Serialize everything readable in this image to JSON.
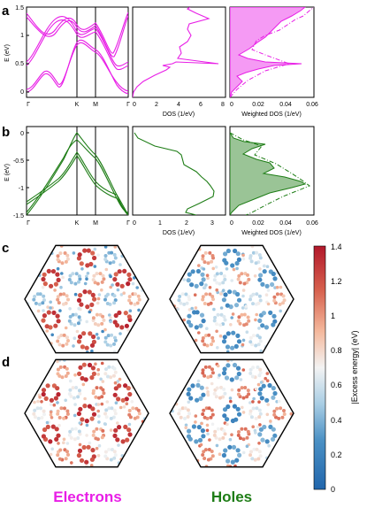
{
  "panel_letters": [
    "a",
    "b",
    "c",
    "d"
  ],
  "colors": {
    "electron": "#e81ee6",
    "hole": "#1e7d16",
    "cmap_low": "#2166ac",
    "cmap_mid": "#f3f3f3",
    "cmap_high": "#b2182b"
  },
  "panel_a": {
    "band_ylabel": "E (eV)",
    "band_yticks": [
      "0",
      "0.5",
      "1",
      "1.5"
    ],
    "kpoints": [
      "Γ",
      "K",
      "M",
      "Γ"
    ],
    "dos_xlabel": "DOS (1/eV)",
    "dos_xticks": [
      "0",
      "2",
      "4",
      "6",
      "8"
    ],
    "wdos_xlabel": "Weighted DOS (1/eV)",
    "wdos_xticks": [
      "0",
      "0.02",
      "0.04",
      "0.06"
    ]
  },
  "panel_b": {
    "band_ylabel": "E (eV)",
    "band_yticks": [
      "0",
      "-0.5",
      "-1",
      "-1.5"
    ],
    "kpoints": [
      "Γ",
      "K",
      "M",
      "Γ"
    ],
    "dos_xlabel": "DOS (1/eV)",
    "dos_xticks": [
      "0",
      "1",
      "2",
      "3"
    ],
    "wdos_xlabel": "Weighted DOS (1/eV)",
    "wdos_xticks": [
      "0",
      "0.02",
      "0.04",
      "0.06"
    ]
  },
  "colorbar": {
    "label": "|Excess energy| (eV)",
    "ticks": [
      "0",
      "0.2",
      "0.4",
      "0.6",
      "0.8",
      "1",
      "1.2",
      "1.4"
    ],
    "range": [
      0,
      1.4
    ]
  },
  "bottom_labels": {
    "electrons": "Electrons",
    "holes": "Holes"
  },
  "chart_data": [
    {
      "type": "line",
      "panel": "a",
      "role": "band structure (electrons)",
      "xlabel": "",
      "ylabel": "E (eV)",
      "ylim": [
        -0.1,
        1.5
      ],
      "x_ticks": [
        "Γ",
        "K",
        "M",
        "Γ"
      ],
      "series": [
        {
          "x": [
            0,
            0.5,
            1,
            1.5,
            2,
            2.5,
            3
          ],
          "values": [
            1.42,
            1.15,
            1.27,
            1.3,
            0.75,
            1.35,
            1.45
          ]
        },
        {
          "x": [
            0,
            0.5,
            1,
            1.5,
            2,
            2.5,
            3
          ],
          "values": [
            1.36,
            1.18,
            1.3,
            1.32,
            0.8,
            1.3,
            1.4
          ]
        },
        {
          "x": [
            0,
            0.5,
            1,
            1.5,
            2,
            2.5,
            3
          ],
          "values": [
            0.45,
            1.05,
            1.25,
            1.3,
            0.7,
            0.55,
            0.45
          ]
        },
        {
          "x": [
            0,
            0.5,
            1,
            1.5,
            2,
            2.5,
            3
          ],
          "values": [
            0.5,
            1.1,
            1.28,
            1.33,
            0.75,
            0.6,
            0.5
          ]
        },
        {
          "x": [
            0,
            0.5,
            1,
            1.5,
            2,
            2.5,
            3
          ],
          "values": [
            0.05,
            0.55,
            1.0,
            0.75,
            0.55,
            0.2,
            0.02
          ]
        },
        {
          "x": [
            0,
            0.5,
            1,
            1.5,
            2,
            2.5,
            3
          ],
          "values": [
            0.1,
            0.52,
            0.95,
            0.72,
            0.5,
            0.25,
            0.08
          ]
        }
      ]
    },
    {
      "type": "line",
      "panel": "a",
      "role": "DOS",
      "xlabel": "DOS (1/eV)",
      "ylabel": "",
      "xlim": [
        0,
        8
      ],
      "ylim": [
        -0.1,
        1.5
      ],
      "series": [
        {
          "x": [
            0,
            0.1,
            0.5,
            1.2,
            2.5,
            3.2,
            2.6,
            3.7,
            3.8,
            7.5,
            3.9,
            4.2,
            4.1,
            5.2,
            4.8,
            5.0,
            6.6,
            5.5,
            4.8,
            5.2
          ],
          "values": [
            -0.1,
            0.0,
            0.1,
            0.2,
            0.3,
            0.4,
            0.45,
            0.48,
            0.5,
            0.53,
            0.6,
            0.7,
            0.8,
            0.9,
            1.0,
            1.1,
            1.2,
            1.3,
            1.4,
            1.5
          ]
        }
      ]
    },
    {
      "type": "area",
      "panel": "a",
      "role": "weighted DOS",
      "xlabel": "Weighted DOS (1/eV)",
      "ylabel": "",
      "xlim": [
        0,
        0.06
      ],
      "ylim": [
        -0.1,
        1.5
      ],
      "series": [
        {
          "style": "filled",
          "x": [
            0,
            0.005,
            0.018,
            0.008,
            0.02,
            0.051,
            0.02,
            0.008,
            0.02,
            0.033,
            0.036,
            0.04,
            0.044,
            0.05
          ],
          "values": [
            -0.1,
            0.0,
            0.15,
            0.3,
            0.4,
            0.5,
            0.6,
            0.7,
            0.85,
            1.0,
            1.1,
            1.2,
            1.3,
            1.45
          ]
        },
        {
          "style": "dash-dot",
          "x": [
            0,
            0.012,
            0.02,
            0.045,
            0.025,
            0.03,
            0.04,
            0.046,
            0.05,
            0.055
          ],
          "values": [
            -0.1,
            0.05,
            0.2,
            0.5,
            0.7,
            0.95,
            1.1,
            1.25,
            1.35,
            1.5
          ]
        }
      ]
    },
    {
      "type": "line",
      "panel": "b",
      "role": "band structure (holes)",
      "xlabel": "",
      "ylabel": "E (eV)",
      "ylim": [
        -1.5,
        0.1
      ],
      "x_ticks": [
        "Γ",
        "K",
        "M",
        "Γ"
      ],
      "series": [
        {
          "x": [
            0,
            0.5,
            1,
            1.5,
            2,
            2.5,
            3
          ],
          "values": [
            -1.5,
            -0.9,
            -0.05,
            -0.5,
            -0.85,
            -1.25,
            -1.5
          ]
        },
        {
          "x": [
            0,
            0.5,
            1,
            1.5,
            2,
            2.5,
            3
          ],
          "values": [
            -1.45,
            -0.85,
            -0.12,
            -0.55,
            -0.9,
            -1.3,
            -1.45
          ]
        },
        {
          "x": [
            0,
            0.5,
            1,
            1.5,
            2,
            2.5,
            3
          ],
          "values": [
            -1.2,
            -0.9,
            -0.4,
            -0.6,
            -1.0,
            -1.1,
            -1.5
          ]
        },
        {
          "x": [
            0,
            0.5,
            1,
            1.5,
            2,
            2.5,
            3
          ],
          "values": [
            -1.25,
            -0.95,
            -0.35,
            -0.65,
            -1.05,
            -1.15,
            -1.5
          ]
        }
      ]
    },
    {
      "type": "line",
      "panel": "b",
      "role": "DOS",
      "xlabel": "DOS (1/eV)",
      "ylabel": "",
      "xlim": [
        0,
        3.5
      ],
      "ylim": [
        -1.5,
        0.1
      ],
      "series": [
        {
          "x": [
            0,
            0.2,
            0.9,
            1.7,
            1.9,
            2.4,
            2.6,
            2.8,
            3.1,
            3.0,
            2.0,
            1.9,
            2.5
          ],
          "values": [
            0.0,
            -0.1,
            -0.25,
            -0.4,
            -0.6,
            -0.75,
            -0.85,
            -0.95,
            -1.05,
            -1.15,
            -1.3,
            -1.4,
            -1.5
          ]
        }
      ]
    },
    {
      "type": "area",
      "panel": "b",
      "role": "weighted DOS",
      "xlabel": "Weighted DOS (1/eV)",
      "ylabel": "",
      "xlim": [
        0,
        0.06
      ],
      "ylim": [
        -1.5,
        0.1
      ],
      "series": [
        {
          "style": "filled",
          "x": [
            0,
            0.01,
            0.028,
            0.015,
            0.03,
            0.033,
            0.024,
            0.045,
            0.052,
            0.03,
            0.012,
            0.005
          ],
          "values": [
            0.0,
            -0.1,
            -0.2,
            -0.4,
            -0.6,
            -0.7,
            -0.8,
            -0.95,
            -1.0,
            -1.15,
            -1.3,
            -1.45
          ]
        },
        {
          "style": "dash-dot",
          "x": [
            0,
            0.015,
            0.03,
            0.025,
            0.04,
            0.048,
            0.055,
            0.03,
            0.015
          ],
          "values": [
            0.0,
            -0.15,
            -0.25,
            -0.45,
            -0.7,
            -0.95,
            -1.05,
            -1.3,
            -1.5
          ]
        }
      ]
    }
  ]
}
